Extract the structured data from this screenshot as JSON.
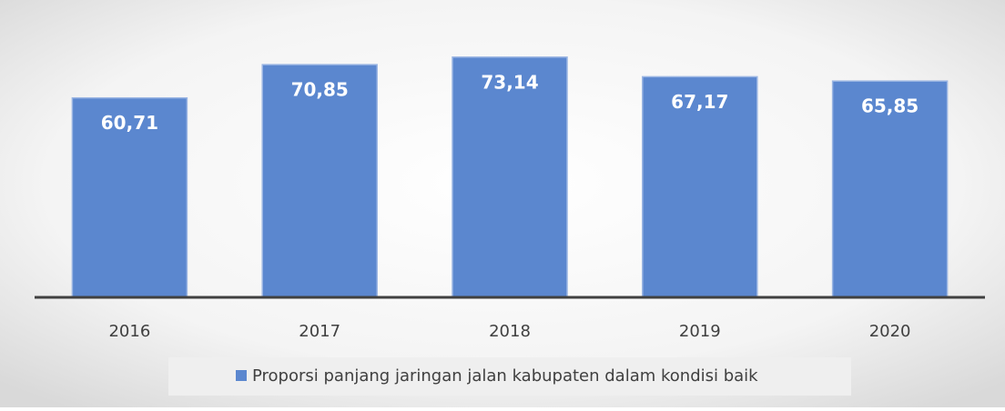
{
  "chart_data": {
    "type": "bar",
    "categories": [
      "2016",
      "2017",
      "2018",
      "2019",
      "2020"
    ],
    "series": [
      {
        "name": "Proporsi panjang jaringan jalan kabupaten dalam kondisi baik",
        "color": "#5b87cf",
        "values": [
          60.71,
          70.85,
          73.14,
          67.17,
          65.85
        ],
        "value_labels": [
          "60,71",
          "70,85",
          "73,14",
          "67,17",
          "65,85"
        ]
      }
    ],
    "ylim": [
      0,
      85
    ],
    "legend": "bottom"
  }
}
